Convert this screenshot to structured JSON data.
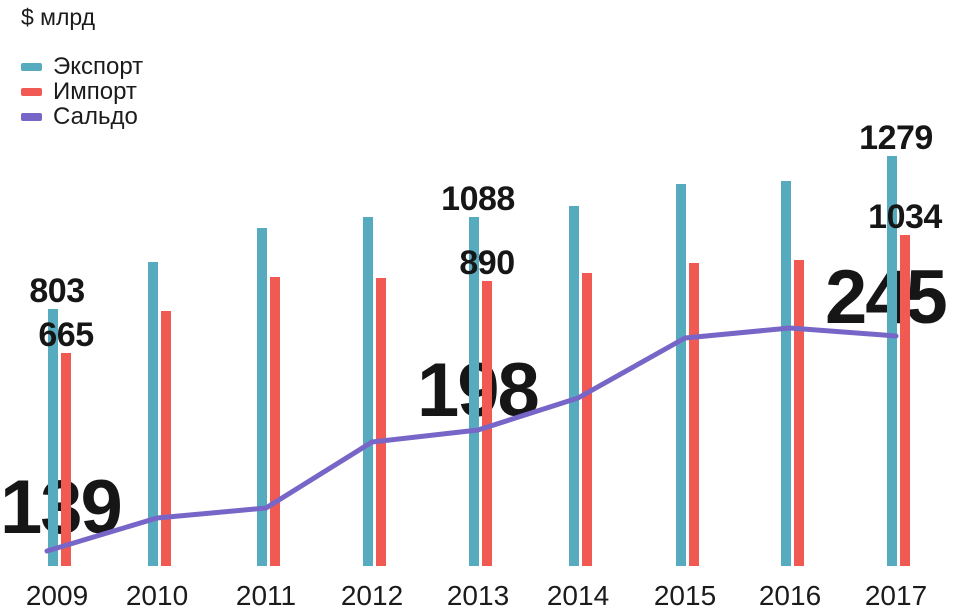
{
  "title": "$ млрд",
  "legend": {
    "items": [
      {
        "label": "Экспорт",
        "color": "#57ABBE"
      },
      {
        "label": "Импорт",
        "color": "#F05A52"
      },
      {
        "label": "Сальдо",
        "color": "#7766C7"
      }
    ]
  },
  "colors": {
    "export_bar": "#57ABBE",
    "import_bar": "#F05A52",
    "saldo_line": "#7766C7",
    "text": "#1b1b1b"
  },
  "chart_data": {
    "type": "bar",
    "subtype": "grouped bars with overlaid line series (dual exaggerated scale for line)",
    "title": "",
    "ylabel": "$ млрд",
    "xlabel": "",
    "grid": false,
    "legend_position": "top-left",
    "categories": [
      "2009",
      "2010",
      "2011",
      "2012",
      "2013",
      "2014",
      "2015",
      "2016",
      "2017"
    ],
    "series": [
      {
        "name": "Экспорт",
        "type": "bar",
        "color": "#57ABBE",
        "values": [
          803,
          950,
          1056,
          1090,
          1088,
          1123,
          1193,
          1202,
          1279
        ],
        "value_labels": [
          803,
          null,
          null,
          null,
          1088,
          null,
          null,
          null,
          1279
        ]
      },
      {
        "name": "Импорт",
        "type": "bar",
        "color": "#F05A52",
        "values": [
          665,
          797,
          902,
          900,
          890,
          913,
          947,
          956,
          1034
        ],
        "value_labels": [
          665,
          null,
          null,
          null,
          890,
          null,
          null,
          null,
          1034
        ]
      },
      {
        "name": "Сальдо",
        "type": "line",
        "color": "#7766C7",
        "values": [
          139,
          154,
          159,
          192,
          198,
          214,
          244,
          249,
          245
        ],
        "value_labels": [
          139,
          null,
          null,
          null,
          198,
          null,
          null,
          null,
          245
        ]
      }
    ],
    "bar_axis_range": [
      0,
      1279
    ],
    "annotations": [
      {
        "series": "Экспорт",
        "category": "2009",
        "text": "803"
      },
      {
        "series": "Импорт",
        "category": "2009",
        "text": "665"
      },
      {
        "series": "Сальдо",
        "category": "2009",
        "text": "139"
      },
      {
        "series": "Экспорт",
        "category": "2013",
        "text": "1088"
      },
      {
        "series": "Импорт",
        "category": "2013",
        "text": "890"
      },
      {
        "series": "Сальдо",
        "category": "2013",
        "text": "198"
      },
      {
        "series": "Экспорт",
        "category": "2017",
        "text": "1279"
      },
      {
        "series": "Импорт",
        "category": "2017",
        "text": "1034"
      },
      {
        "series": "Сальдо",
        "category": "2017",
        "text": "245"
      }
    ]
  }
}
